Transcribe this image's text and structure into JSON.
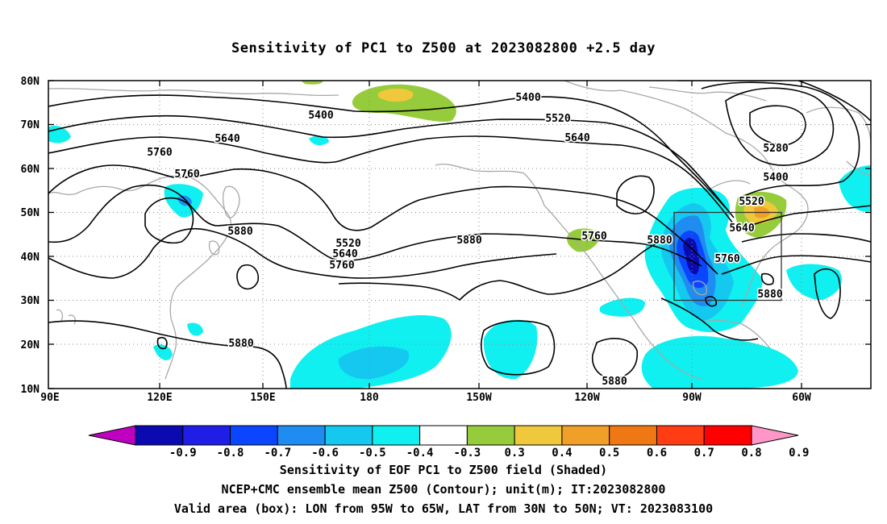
{
  "title": "Sensitivity of PC1 to Z500 at 2023082800 +2.5 day",
  "lat_labels": [
    "80N",
    "70N",
    "60N",
    "50N",
    "40N",
    "30N",
    "20N",
    "10N"
  ],
  "lon_labels": [
    "90E",
    "120E",
    "150E",
    "180",
    "150W",
    "120W",
    "90W",
    "60W"
  ],
  "contour_labels": [
    {
      "text": "5400",
      "name": "contour-label-5400-atlantic"
    },
    {
      "text": "5400",
      "name": "contour-label-5400-north"
    },
    {
      "text": "5520",
      "name": "contour-label-5520-north"
    },
    {
      "text": "5640",
      "name": "contour-label-5640-west"
    },
    {
      "text": "5760",
      "name": "contour-label-5760-west"
    },
    {
      "text": "5760",
      "name": "contour-label-5760-low"
    },
    {
      "text": "5640",
      "name": "contour-label-5640-mid"
    },
    {
      "text": "5280",
      "name": "contour-label-5280"
    },
    {
      "text": "5400",
      "name": "contour-label-5400-east"
    },
    {
      "text": "5520",
      "name": "contour-label-5520-east"
    },
    {
      "text": "5640",
      "name": "contour-label-5640-east"
    },
    {
      "text": "5760",
      "name": "contour-label-5760-east"
    },
    {
      "text": "5880",
      "name": "contour-label-5880-east"
    },
    {
      "text": "5880",
      "name": "contour-label-5880-pacific"
    },
    {
      "text": "5520",
      "name": "contour-label-5520-trough"
    },
    {
      "text": "5640",
      "name": "contour-label-5640-trough"
    },
    {
      "text": "5760",
      "name": "contour-label-5760-trough"
    },
    {
      "text": "5880",
      "name": "contour-label-5880-mid"
    },
    {
      "text": "5760",
      "name": "contour-label-5760-conus"
    },
    {
      "text": "5880",
      "name": "contour-label-5880-conus"
    },
    {
      "text": "5880",
      "name": "contour-label-5880-subtropic"
    },
    {
      "text": "5880",
      "name": "contour-label-5880-south"
    }
  ],
  "colorbar": {
    "labels": [
      "-0.9",
      "-0.8",
      "-0.7",
      "-0.6",
      "-0.5",
      "-0.4",
      "-0.3",
      "0.3",
      "0.4",
      "0.5",
      "0.6",
      "0.7",
      "0.8",
      "0.9"
    ],
    "colors": [
      "#c000c0",
      "#0a0ab0",
      "#1e1ee6",
      "#0a46ff",
      "#1e8cf0",
      "#14c8f0",
      "#10f0f0",
      "#ffffff",
      "#96cc3c",
      "#f0c83c",
      "#f0a028",
      "#f07814",
      "#ff3c14",
      "#ff0000",
      "#ff96c8"
    ]
  },
  "captions": {
    "line1": "Sensitivity of EOF PC1 to Z500 field (Shaded)",
    "line2": "NCEP+CMC ensemble mean Z500 (Contour); unit(m); IT:2023082800",
    "line3": "Valid area (box): LON from 95W to 65W, LAT from 30N to 50N; VT: 2023083100"
  }
}
